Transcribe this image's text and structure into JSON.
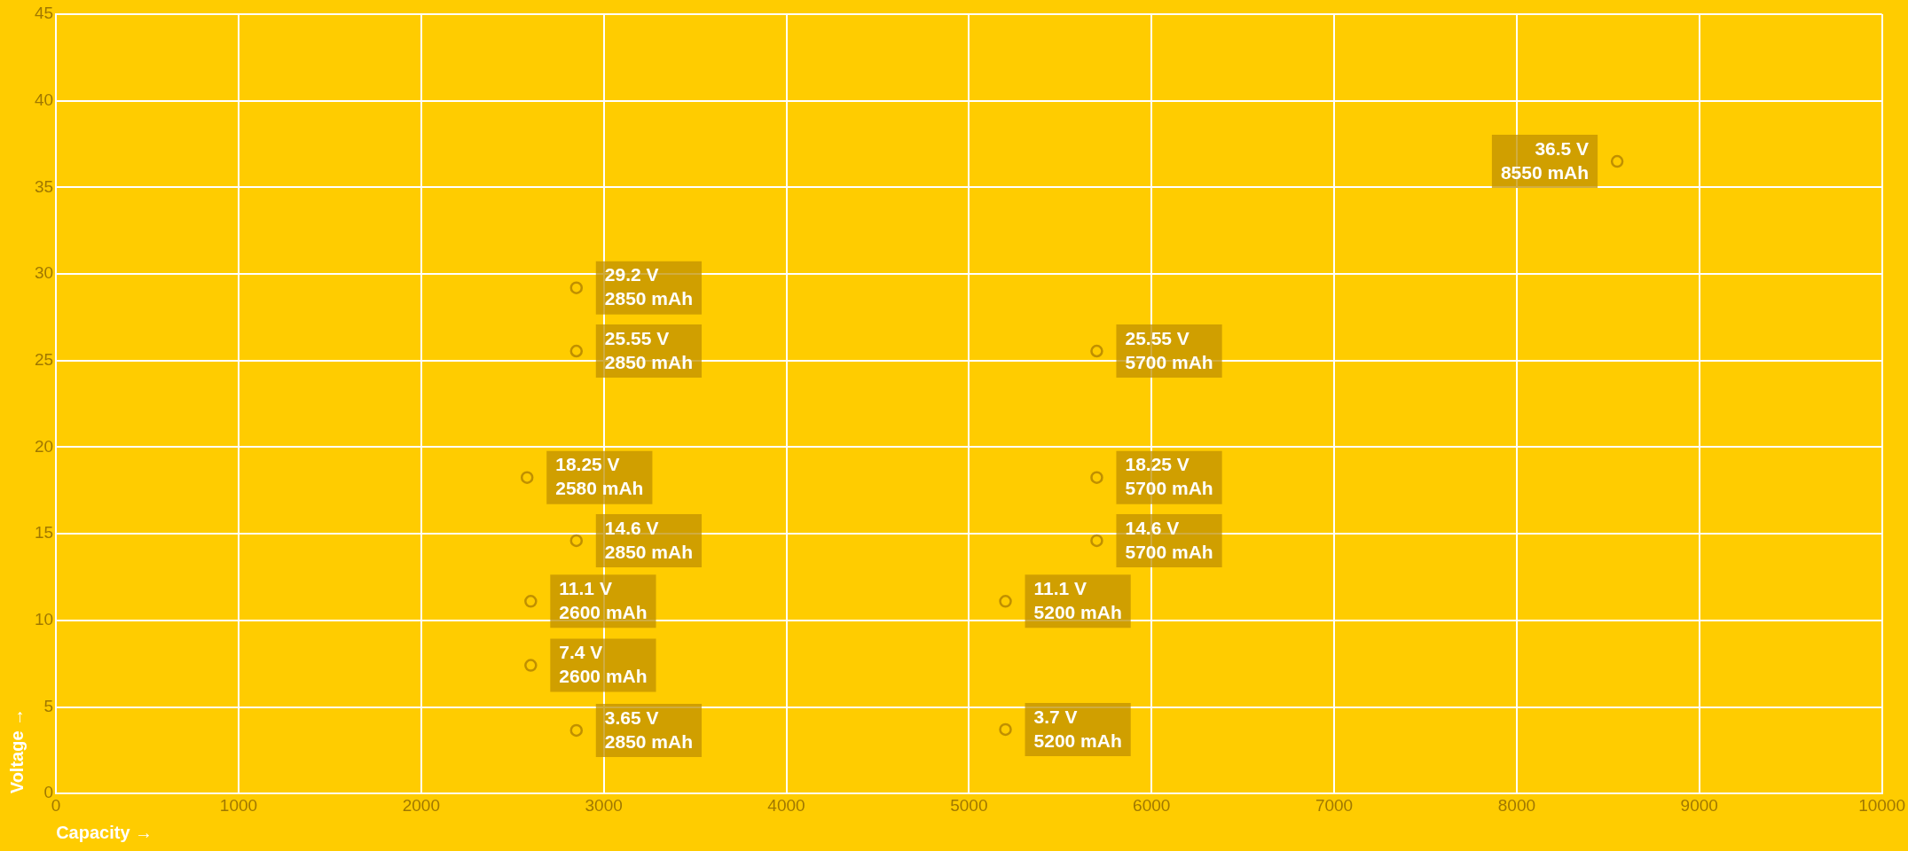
{
  "chart_data": {
    "type": "scatter",
    "xlabel": "Capacity →",
    "ylabel": "Voltage →",
    "series": [
      {
        "color": "#c09000",
        "x": [
          2850,
          2850,
          2580,
          2850,
          2600,
          2600,
          2850,
          5700,
          5700,
          5200,
          5700,
          5200,
          8550
        ],
        "values": [
          29.2,
          25.55,
          18.25,
          14.6,
          11.1,
          7.4,
          3.65,
          25.55,
          18.25,
          11.1,
          14.6,
          3.7,
          36.5
        ],
        "value_labels": [
          "29.2 V\n2850 mAh",
          "25.55 V\n2850 mAh",
          "18.25 V\n2580 mAh",
          "14.6 V\n2850 mAh",
          "11.1 V\n2600 mAh",
          "7.4 V\n2600 mAh",
          "3.65 V\n2850 mAh",
          "25.55 V\n5700 mAh",
          "18.25 V\n5700 mAh",
          "11.1 V\n5200 mAh",
          "14.6 V\n5700 mAh",
          "3.7 V\n5200 mAh",
          "36.5 V\n8550 mAh"
        ]
      }
    ],
    "xlim": [
      0,
      10000
    ],
    "xticks": [
      0,
      1000,
      2000,
      3000,
      4000,
      5000,
      6000,
      7000,
      8000,
      9000,
      10000
    ],
    "ylim": [
      0,
      45
    ],
    "yticks": [
      0,
      5,
      10,
      15,
      20,
      25,
      30,
      35,
      40,
      45
    ],
    "grid": true,
    "legend": false,
    "marker": "circle"
  }
}
